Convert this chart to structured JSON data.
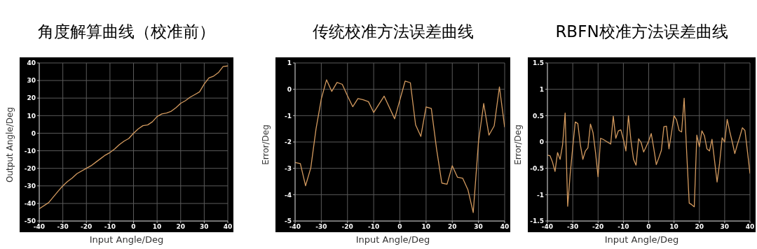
{
  "chart_data": [
    {
      "type": "line",
      "title": "角度解算曲线（校准前）",
      "xlabel": "Input Angle/Deg",
      "ylabel": "Output Angle/Deg",
      "x": [
        -40,
        -36,
        -32,
        -30,
        -28,
        -26,
        -24,
        -20,
        -18,
        -16,
        -14,
        -12,
        -10,
        -8,
        -6,
        -4,
        -2,
        0,
        2,
        4,
        6,
        8,
        10,
        12,
        14,
        16,
        18,
        20,
        22,
        24,
        26,
        28,
        30,
        32,
        34,
        36,
        38,
        40
      ],
      "series": [
        {
          "color": "#d39a5f",
          "values": [
            -43,
            -39.5,
            -33,
            -30,
            -27.5,
            -25.5,
            -23,
            -20,
            -18.5,
            -16.5,
            -14.5,
            -12.5,
            -11,
            -9,
            -6.5,
            -4.5,
            -3,
            0,
            2.5,
            4.3,
            4.7,
            6.5,
            9.5,
            11,
            11.5,
            12.5,
            14.5,
            17,
            18.5,
            20.5,
            22,
            23.5,
            28,
            31.5,
            32.5,
            34.5,
            38,
            38.3
          ]
        }
      ],
      "xlim": [
        -40,
        40
      ],
      "xticks": [
        -40,
        -30,
        -20,
        -10,
        0,
        10,
        20,
        30,
        40
      ],
      "ylim": [
        -50,
        40
      ],
      "yticks": [
        -50,
        -40,
        -30,
        -20,
        -10,
        0,
        10,
        20,
        30,
        40
      ],
      "grid": true
    },
    {
      "type": "line",
      "title": "传统校准方法误差曲线",
      "xlabel": "Input Angle/Deg",
      "ylabel": "Error/Deg",
      "x": [
        -40,
        -38,
        -36,
        -34,
        -32,
        -30,
        -28,
        -26,
        -24,
        -22,
        -20,
        -18,
        -16,
        -14,
        -12,
        -10,
        -6,
        -2,
        2,
        4,
        6,
        8,
        10,
        12,
        14,
        16,
        18,
        20,
        22,
        24,
        26,
        28,
        30,
        32,
        34,
        36,
        38,
        40
      ],
      "series": [
        {
          "color": "#d39a5f",
          "values": [
            -2.78,
            -2.82,
            -3.66,
            -2.98,
            -1.5,
            -0.37,
            0.36,
            -0.08,
            0.26,
            0.19,
            -0.25,
            -0.66,
            -0.35,
            -0.4,
            -0.47,
            -0.88,
            -0.26,
            -1.12,
            0.31,
            0.25,
            -1.35,
            -1.79,
            -0.67,
            -0.73,
            -2.26,
            -3.56,
            -3.6,
            -2.9,
            -3.34,
            -3.38,
            -3.82,
            -4.68,
            -2.0,
            -0.54,
            -1.74,
            -1.39,
            0.09,
            -1.44
          ]
        }
      ],
      "xlim": [
        -40,
        40
      ],
      "xticks": [
        -40,
        -30,
        -20,
        -10,
        0,
        10,
        20,
        30,
        40
      ],
      "ylim": [
        -5,
        1
      ],
      "yticks": [
        -5,
        -4,
        -3,
        -2,
        -1,
        0,
        1
      ],
      "grid": true
    },
    {
      "type": "line",
      "title": "RBFN校准方法误差曲线",
      "xlabel": "Input Angle/Deg",
      "ylabel": "Error/Deg",
      "x": [
        -40,
        -39,
        -38,
        -37,
        -36,
        -35,
        -34,
        -33,
        -32,
        -31,
        -30,
        -29,
        -28,
        -27,
        -26,
        -25,
        -24,
        -23,
        -22,
        -21,
        -20,
        -19,
        -18,
        -17,
        -16,
        -15,
        -14,
        -13,
        -12,
        -11,
        -10,
        -9,
        -8,
        -7,
        -6,
        -5,
        -4,
        -3,
        -2,
        -1,
        0,
        1,
        2,
        3,
        4,
        5,
        6,
        7,
        8,
        9,
        10,
        11,
        12,
        13,
        14,
        15,
        16,
        17,
        18,
        19,
        20,
        21,
        22,
        23,
        24,
        25,
        26,
        27,
        28,
        29,
        30,
        31,
        32,
        33,
        34,
        35,
        36,
        37,
        38,
        39,
        40
      ],
      "series": [
        {
          "color": "#d39a5f",
          "values": [
            -0.25,
            -0.26,
            -0.38,
            -0.56,
            -0.2,
            -0.33,
            -0.05,
            0.55,
            -1.22,
            -0.6,
            -0.1,
            0.38,
            0.35,
            -0.05,
            -0.33,
            -0.17,
            -0.11,
            0.34,
            0.18,
            -0.2,
            -0.66,
            0.07,
            0.05,
            0.02,
            -0.01,
            -0.04,
            0.49,
            0.07,
            0.21,
            0.23,
            0.05,
            -0.17,
            0.5,
            0.02,
            -0.33,
            -0.44,
            0.06,
            -0.01,
            -0.19,
            -0.09,
            0.02,
            0.16,
            -0.12,
            -0.43,
            -0.3,
            -0.16,
            0.29,
            0.3,
            -0.13,
            0.17,
            0.5,
            0.42,
            0.22,
            0.19,
            0.83,
            -0.2,
            -1.16,
            -1.19,
            -1.23,
            0.13,
            -0.09,
            0.21,
            0.12,
            -0.13,
            -0.17,
            0.05,
            -0.35,
            -0.76,
            -0.4,
            0.08,
            0,
            0.43,
            0.2,
            0,
            -0.22,
            -0.05,
            0.1,
            0.27,
            0.22,
            -0.18,
            -0.6
          ]
        }
      ],
      "xlim": [
        -40,
        40
      ],
      "xticks": [
        -40,
        -30,
        -20,
        -10,
        0,
        10,
        20,
        30,
        40
      ],
      "ylim": [
        -1.5,
        1.5
      ],
      "yticks": [
        -1.5,
        -1,
        -0.5,
        0,
        0.5,
        1,
        1.5
      ],
      "grid": true
    }
  ]
}
